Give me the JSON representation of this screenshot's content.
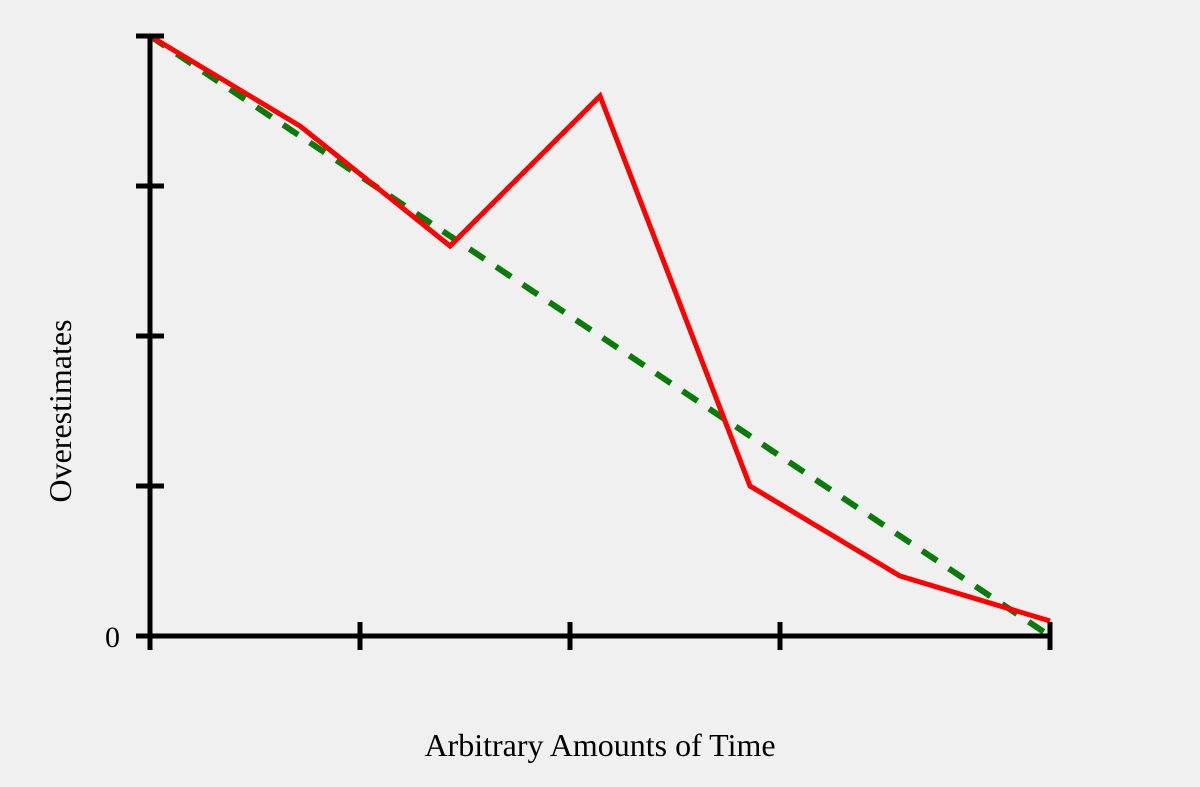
{
  "chart_data": {
    "type": "line",
    "xlabel": "Arbitrary Amounts of Time",
    "ylabel": "Overestimates",
    "xlim": [
      0,
      6
    ],
    "ylim": [
      0,
      4
    ],
    "x_ticks": [
      0,
      1.4,
      2.8,
      4.2,
      6
    ],
    "y_ticks": [
      0,
      1,
      2,
      3,
      4
    ],
    "y_tick_labels": [
      {
        "value": 0,
        "label": "0"
      }
    ],
    "grid": false,
    "legend": "none",
    "series": [
      {
        "color": "#ff0000",
        "style": "solid",
        "points": [
          {
            "x": 0,
            "y": 4.0
          },
          {
            "x": 1.0,
            "y": 3.4
          },
          {
            "x": 2.0,
            "y": 2.6
          },
          {
            "x": 3.0,
            "y": 3.6
          },
          {
            "x": 4.0,
            "y": 1.0
          },
          {
            "x": 5.0,
            "y": 0.4
          },
          {
            "x": 6.0,
            "y": 0.1
          }
        ]
      },
      {
        "color": "#0a7a0a",
        "style": "dashed",
        "points": [
          {
            "x": 0,
            "y": 4.0
          },
          {
            "x": 6.0,
            "y": 0.0
          }
        ]
      }
    ]
  }
}
